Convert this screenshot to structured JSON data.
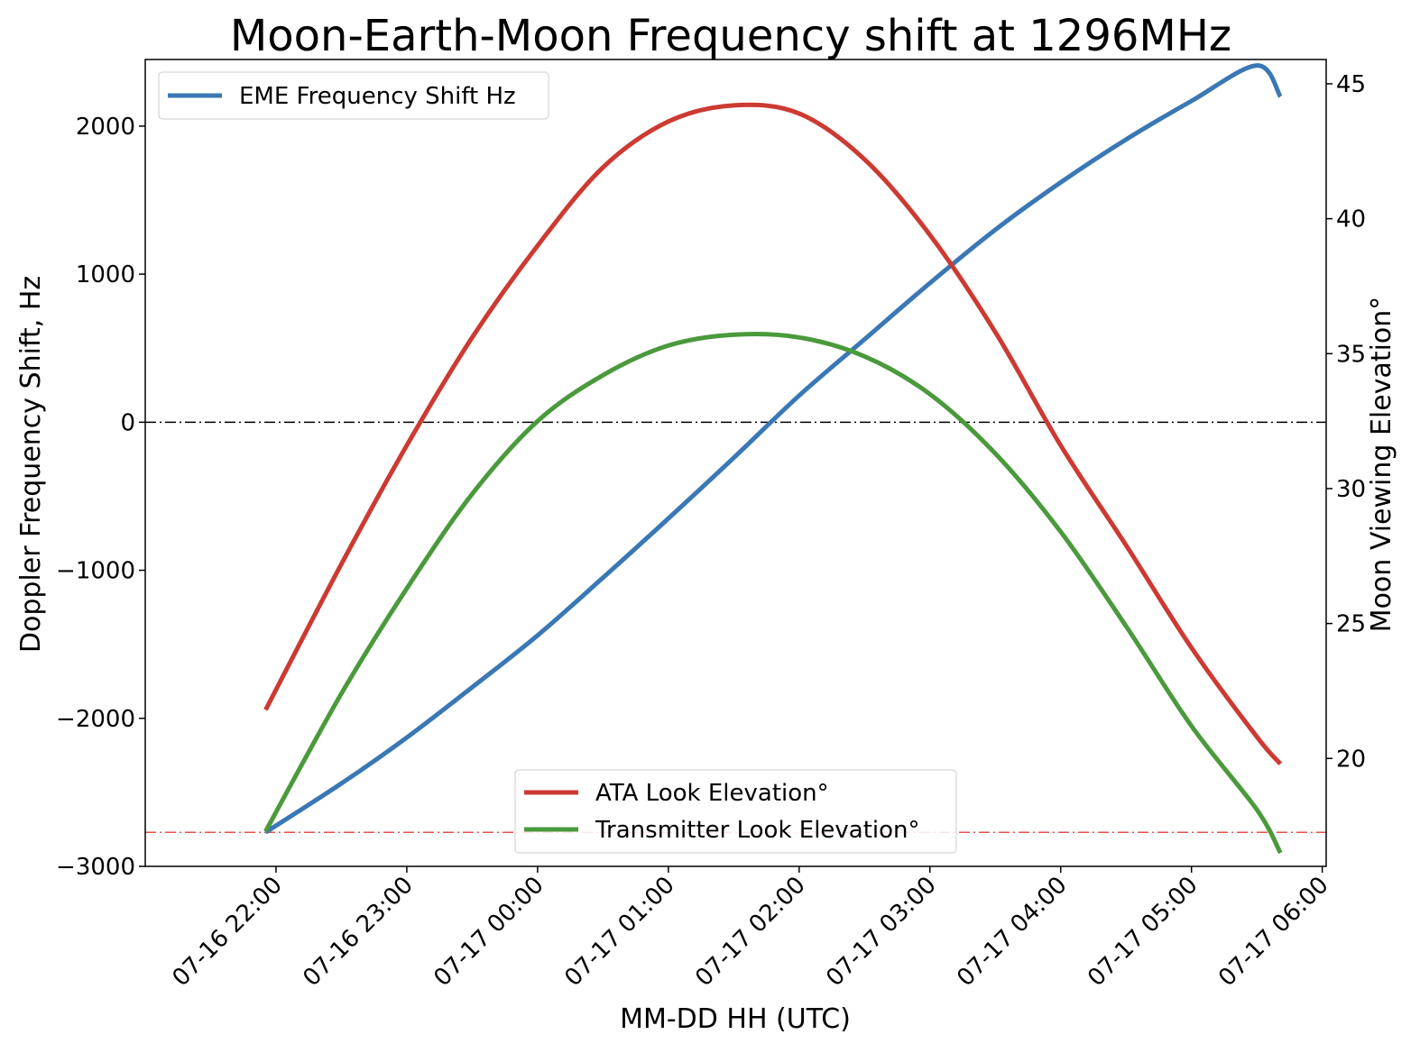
{
  "chart_data": {
    "type": "line",
    "title": "Moon-Earth-Moon Frequency shift at 1296MHz",
    "xlabel": "MM-DD HH (UTC)",
    "ylabel_left": "Doppler Frequency Shift, Hz",
    "ylabel_right": "Moon Viewing Elevation°",
    "x_ticks": [
      "07-16 22:00",
      "07-16 23:00",
      "07-17 00:00",
      "07-17 01:00",
      "07-17 02:00",
      "07-17 03:00",
      "07-17 04:00",
      "07-17 05:00",
      "07-17 06:00"
    ],
    "x_tick_hours": [
      22,
      23,
      24,
      25,
      26,
      27,
      28,
      29,
      30
    ],
    "xlim_hours": [
      21.0,
      30.03
    ],
    "y_left_ticks": [
      "2000",
      "1000",
      "0",
      "−1000",
      "−2000",
      "−3000"
    ],
    "y_left_tick_values": [
      2000,
      1000,
      0,
      -1000,
      -2000,
      -3000
    ],
    "ylim_left": [
      -3000,
      2450
    ],
    "y_right_ticks": [
      "45",
      "40",
      "35",
      "30",
      "25",
      "20"
    ],
    "y_right_tick_values": [
      45,
      40,
      35,
      30,
      25,
      20
    ],
    "ylim_right": [
      16.0,
      45.9
    ],
    "reference_lines": [
      {
        "axis": "left",
        "value": 0,
        "color": "#000000"
      },
      {
        "axis": "left",
        "value": -2770,
        "color": "#e8504a"
      }
    ],
    "series": [
      {
        "name": "EME Frequency Shift Hz",
        "axis": "left",
        "color": "#3a78b5",
        "x": [
          21.92,
          22.5,
          23.0,
          23.5,
          24.0,
          24.5,
          25.0,
          25.5,
          26.0,
          26.5,
          27.0,
          27.5,
          28.0,
          28.5,
          29.0,
          29.5,
          29.68
        ],
        "y": [
          -2770,
          -2440,
          -2130,
          -1790,
          -1440,
          -1050,
          -650,
          -240,
          180,
          560,
          940,
          1300,
          1620,
          1910,
          2170,
          2410,
          2200
        ]
      },
      {
        "name": "ATA Look Elevation°",
        "axis": "right",
        "color": "#cc3a32",
        "x": [
          21.92,
          22.5,
          23.0,
          23.5,
          24.0,
          24.5,
          25.0,
          25.5,
          26.0,
          26.5,
          27.0,
          27.5,
          28.0,
          28.5,
          29.0,
          29.5,
          29.68
        ],
        "y": [
          21.8,
          27.2,
          31.6,
          35.6,
          39.0,
          41.9,
          43.6,
          44.2,
          43.9,
          42.2,
          39.4,
          35.8,
          31.6,
          27.9,
          24.1,
          20.8,
          19.8
        ]
      },
      {
        "name": "Transmitter Look Elevation°",
        "axis": "right",
        "color": "#4a9a3c",
        "x": [
          21.92,
          22.5,
          23.0,
          23.5,
          24.0,
          24.5,
          25.0,
          25.5,
          26.0,
          26.5,
          27.0,
          27.5,
          28.0,
          28.5,
          29.0,
          29.5,
          29.68
        ],
        "y": [
          17.3,
          22.4,
          26.3,
          29.8,
          32.5,
          34.2,
          35.3,
          35.7,
          35.6,
          34.9,
          33.5,
          31.3,
          28.4,
          24.9,
          21.2,
          18.1,
          16.5
        ]
      }
    ],
    "legends": [
      {
        "placement": "top-left",
        "entries": [
          "EME Frequency Shift Hz"
        ]
      },
      {
        "placement": "bottom-center",
        "entries": [
          "ATA Look Elevation°",
          "Transmitter Look Elevation°"
        ]
      }
    ]
  }
}
